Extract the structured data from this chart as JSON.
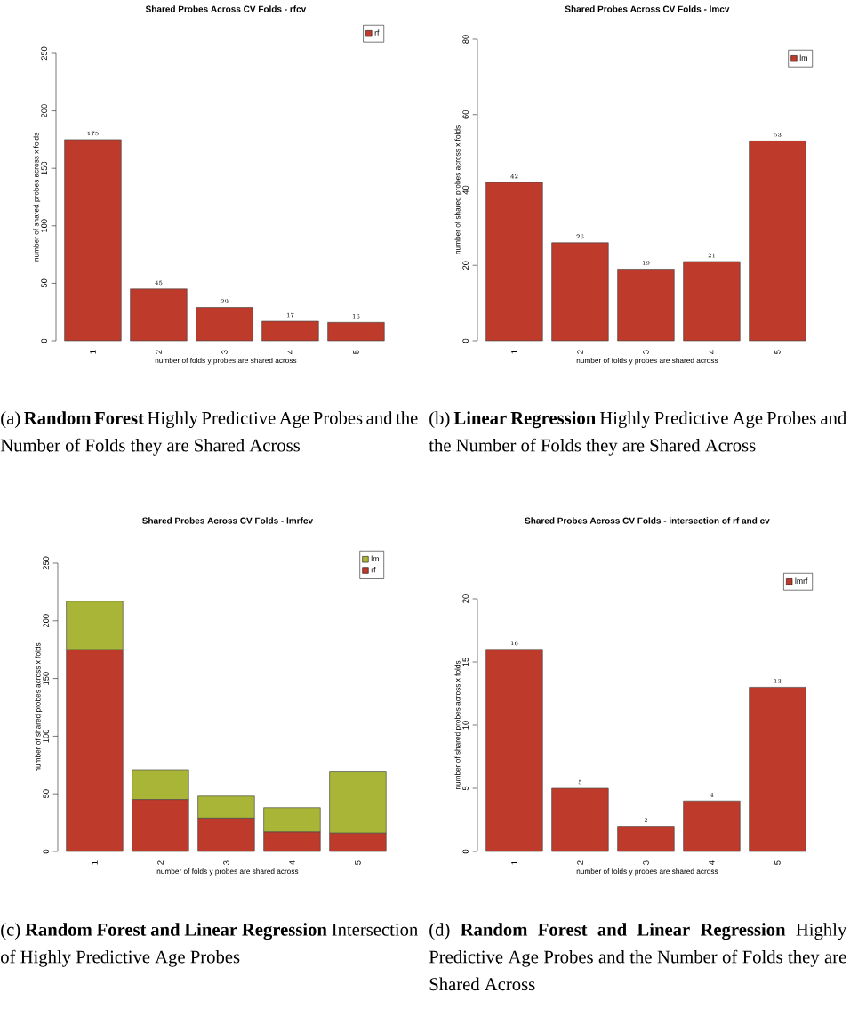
{
  "chart_data": [
    {
      "type": "bar",
      "title": "Shared Probes Across CV Folds - rfcv",
      "xlabel": "number of folds y probes are shared across",
      "ylabel": "number of shared probes across x folds",
      "categories": [
        "1",
        "2",
        "3",
        "4",
        "5"
      ],
      "series": [
        {
          "name": "rf",
          "color": "#be3a2a",
          "values": [
            175,
            45,
            29,
            17,
            16
          ]
        }
      ],
      "ylim": [
        0,
        250
      ],
      "yticks": [
        0,
        50,
        100,
        150,
        200,
        250
      ],
      "data_labels": true,
      "legend": "top right",
      "annotations": [
        "(a) **Random Forest** Highly Predictive Age Probes and the Number of Folds they are Shared Across"
      ]
    },
    {
      "type": "bar",
      "title": "Shared Probes Across CV Folds - lmcv",
      "xlabel": "number of folds y probes are shared across",
      "ylabel": "number of shared probes across x folds",
      "categories": [
        "1",
        "2",
        "3",
        "4",
        "5"
      ],
      "series": [
        {
          "name": "lm",
          "color": "#be3a2a",
          "values": [
            42,
            26,
            19,
            21,
            53
          ]
        }
      ],
      "ylim": [
        0,
        80
      ],
      "yticks": [
        0,
        20,
        40,
        60,
        80
      ],
      "data_labels": true,
      "legend": "top right",
      "annotations": [
        "(b) **Linear Regression** Highly Predictive Age Probes and the Number of Folds they are Shared Across"
      ]
    },
    {
      "type": "bar",
      "title": "Shared Probes Across CV Folds - lmrfcv",
      "xlabel": "number of folds y probes are shared across",
      "ylabel": "number of shared probes across x folds",
      "categories": [
        "1",
        "2",
        "3",
        "4",
        "5"
      ],
      "stacked": true,
      "series": [
        {
          "name": "rf",
          "color": "#be3a2a",
          "values": [
            175,
            45,
            29,
            17,
            16
          ]
        },
        {
          "name": "lm",
          "color": "#a8b536",
          "values": [
            42,
            26,
            19,
            21,
            53
          ]
        }
      ],
      "ylim": [
        0,
        250
      ],
      "yticks": [
        0,
        50,
        100,
        150,
        200,
        250
      ],
      "legend": "top right",
      "annotations": [
        "(c) **Random Forest and Linear Regression** Intersection of Highly Predictive Age Probes"
      ]
    },
    {
      "type": "bar",
      "title": "Shared Probes Across CV Folds - intersection of rf and cv",
      "xlabel": "number of folds y probes are shared across",
      "ylabel": "number of shared probes across x folds",
      "categories": [
        "1",
        "2",
        "3",
        "4",
        "5"
      ],
      "series": [
        {
          "name": "lmrf",
          "color": "#be3a2a",
          "values": [
            16,
            5,
            2,
            4,
            13
          ]
        }
      ],
      "ylim": [
        0,
        20
      ],
      "yticks": [
        0,
        5,
        10,
        15,
        20
      ],
      "data_labels": true,
      "legend": "top right",
      "annotations": [
        "(d) **Random Forest and Linear Regression** Highly Predictive Age Probes and the Number of Folds they are Shared Across"
      ]
    }
  ]
}
